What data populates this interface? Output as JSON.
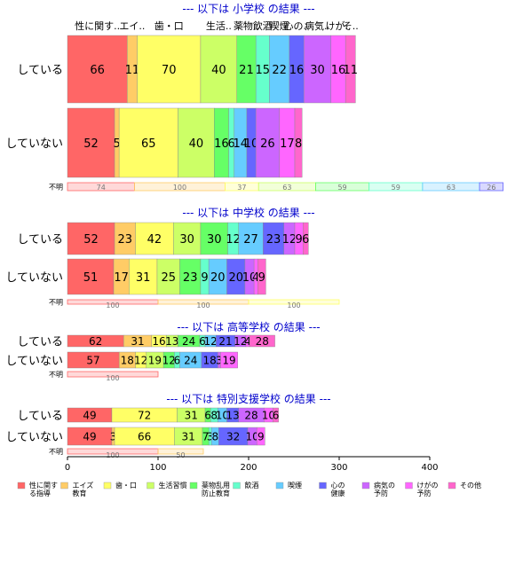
{
  "chart_data": {
    "type": "bar",
    "orientation": "horizontal",
    "stacked": true,
    "xlim": [
      0,
      400
    ],
    "xticks": [
      "0",
      "100",
      "200",
      "300",
      "400"
    ],
    "categories": [
      "性に関する指導",
      "エイズ教育",
      "歯・口",
      "生活習慣",
      "薬物乱用防止教育",
      "飲酒",
      "喫煙",
      "心の健康",
      "病気の予防",
      "けがの予防",
      "その他"
    ],
    "legend_labels": [
      "性に関す\nる指導",
      "エイズ\n教育",
      "歯・口",
      "生活習慣",
      "薬物乱用\n防止教育",
      "飲酒",
      "喫煙",
      "心の\n健康",
      "病気の\n予防",
      "けがの\n予防",
      "その他"
    ],
    "colors": [
      "#ff6666",
      "#ffcc66",
      "#ffff66",
      "#ccff66",
      "#66ff66",
      "#66ffcc",
      "#66ccff",
      "#6666ff",
      "#cc66ff",
      "#ff66ff",
      "#ff66cc"
    ],
    "legend_colors": [
      "#ff6666",
      "#ffcc66",
      "#ffff66",
      "#ccff66",
      "#66ff66",
      "#66ffcc",
      "#66ccff",
      "#6666ff",
      "#cc66ff",
      "#ff66ff",
      "#ff66cc"
    ],
    "top_labels": [
      "性に関す..",
      "エイ..",
      "歯・口",
      "生活..",
      "薬物..",
      "飲酒",
      "喫煙",
      "心の..",
      "病気..",
      "けが..",
      "そ.."
    ],
    "panels": [
      {
        "title": "--- 以下は 小学校 の結果 ---",
        "rows": [
          {
            "label": "している",
            "values": [
              66,
              11,
              70,
              40,
              21,
              15,
              22,
              16,
              30,
              16,
              11
            ]
          },
          {
            "label": "していない",
            "values": [
              52,
              5,
              65,
              40,
              16,
              6,
              14,
              10,
              26,
              17,
              8
            ]
          }
        ],
        "fumei_label": "不明",
        "fumei": [
          74,
          100,
          37,
          63,
          59,
          59,
          63,
          26
        ]
      },
      {
        "title": "--- 以下は 中学校 の結果 ---",
        "rows": [
          {
            "label": "している",
            "values": [
              52,
              23,
              42,
              30,
              30,
              12,
              27,
              23,
              12,
              9,
              6
            ]
          },
          {
            "label": "していない",
            "values": [
              51,
              17,
              31,
              25,
              23,
              9,
              20,
              20,
              10,
              4,
              9
            ]
          }
        ],
        "fumei_label": "不明",
        "fumei": [
          100,
          100,
          100
        ]
      },
      {
        "title": "--- 以下は 高等学校 の結果 ---",
        "rows": [
          {
            "label": "している",
            "values": [
              62,
              31,
              16,
              13,
              24,
              6,
              12,
              21,
              12,
              4,
              28
            ]
          },
          {
            "label": "していない",
            "values": [
              57,
              18,
              12,
              19,
              12,
              6,
              24,
              18,
              3,
              19,
              0
            ]
          }
        ],
        "fumei_label": "不明",
        "fumei": [
          100
        ]
      },
      {
        "title": "--- 以下は 特別支援学校 の結果 ---",
        "rows": [
          {
            "label": "している",
            "values": [
              49,
              0,
              72,
              31,
              6,
              8,
              10,
              13,
              28,
              10,
              6
            ]
          },
          {
            "label": "していない",
            "values": [
              49,
              3,
              66,
              31,
              7,
              3,
              8,
              32,
              10,
              9,
              0
            ]
          }
        ],
        "fumei_label": "不明",
        "fumei": [
          100,
          50
        ]
      }
    ]
  }
}
